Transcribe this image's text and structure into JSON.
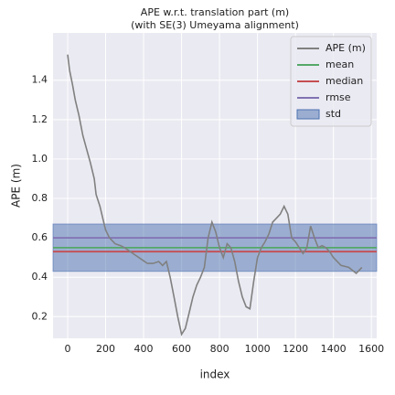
{
  "chart_data": {
    "type": "line",
    "title": "APE w.r.t. translation part (m)",
    "subtitle": "(with SE(3) Umeyama alignment)",
    "xlabel": "index",
    "ylabel": "APE (m)",
    "x": [
      0,
      10,
      25,
      40,
      60,
      80,
      100,
      120,
      140,
      150,
      170,
      190,
      200,
      220,
      250,
      280,
      300,
      330,
      360,
      390,
      420,
      450,
      480,
      500,
      520,
      540,
      560,
      580,
      600,
      620,
      640,
      660,
      680,
      700,
      720,
      740,
      760,
      780,
      800,
      820,
      840,
      860,
      880,
      900,
      920,
      940,
      960,
      980,
      1000,
      1020,
      1040,
      1060,
      1080,
      1100,
      1120,
      1140,
      1160,
      1180,
      1200,
      1220,
      1240,
      1260,
      1280,
      1300,
      1320,
      1340,
      1360,
      1380,
      1400,
      1440,
      1480,
      1520,
      1550
    ],
    "series": [
      {
        "name": "APE (m)",
        "color": "#808080",
        "values": [
          1.53,
          1.45,
          1.38,
          1.3,
          1.22,
          1.12,
          1.05,
          0.98,
          0.9,
          0.82,
          0.76,
          0.68,
          0.64,
          0.6,
          0.57,
          0.56,
          0.55,
          0.53,
          0.51,
          0.49,
          0.47,
          0.47,
          0.48,
          0.46,
          0.48,
          0.4,
          0.3,
          0.2,
          0.11,
          0.14,
          0.22,
          0.3,
          0.36,
          0.4,
          0.45,
          0.6,
          0.68,
          0.63,
          0.55,
          0.5,
          0.57,
          0.55,
          0.48,
          0.38,
          0.3,
          0.25,
          0.24,
          0.38,
          0.5,
          0.55,
          0.58,
          0.62,
          0.68,
          0.7,
          0.72,
          0.76,
          0.72,
          0.6,
          0.58,
          0.55,
          0.52,
          0.55,
          0.66,
          0.6,
          0.55,
          0.56,
          0.55,
          0.53,
          0.5,
          0.46,
          0.45,
          0.42,
          0.45
        ]
      }
    ],
    "reference_lines": [
      {
        "name": "mean",
        "color": "#55a868",
        "value": 0.55
      },
      {
        "name": "median",
        "color": "#c44e52",
        "value": 0.53
      },
      {
        "name": "rmse",
        "color": "#8172b2",
        "value": 0.6
      }
    ],
    "band": {
      "name": "std",
      "color": "#4c72b0",
      "values": [
        0.43,
        0.67
      ]
    },
    "xlim": [
      -77,
      1628
    ],
    "ylim": [
      0.09,
      1.64
    ],
    "xticks": [
      0,
      200,
      400,
      600,
      800,
      1000,
      1200,
      1400,
      1600
    ],
    "yticks": [
      0.2,
      0.4,
      0.6,
      0.8,
      {
        "value": 1,
        "label": "1.0"
      },
      1.2,
      1.4
    ],
    "grid": true,
    "legend": "upper right"
  }
}
